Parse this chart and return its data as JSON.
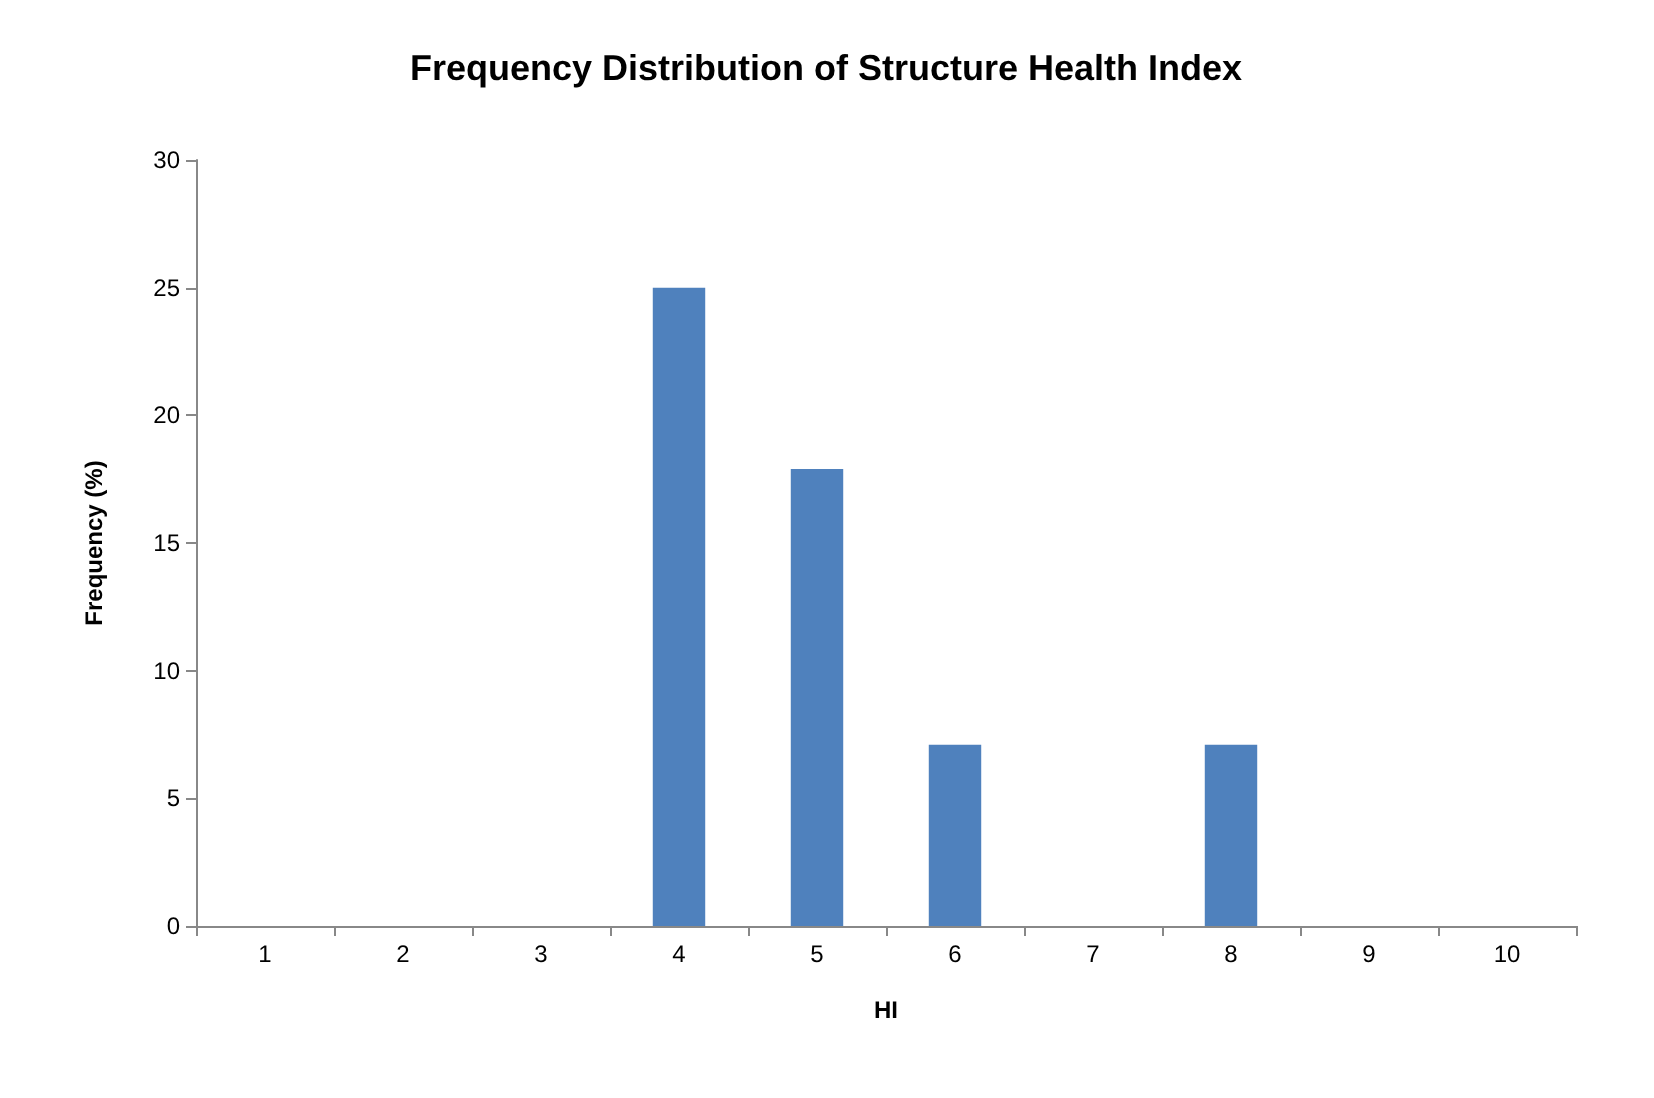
{
  "chart_data": {
    "type": "bar",
    "title": "Frequency Distribution of Structure Health Index",
    "xlabel": "HI",
    "ylabel": "Frequency (%)",
    "categories": [
      "1",
      "2",
      "3",
      "4",
      "5",
      "6",
      "7",
      "8",
      "9",
      "10"
    ],
    "values": [
      0,
      0,
      0,
      25,
      17.9,
      7.1,
      0,
      7.1,
      0,
      0
    ],
    "color": "#4f81bd",
    "ylim": [
      0,
      30
    ],
    "yticks": [
      0,
      5,
      10,
      15,
      20,
      25,
      30
    ],
    "grid": false
  }
}
